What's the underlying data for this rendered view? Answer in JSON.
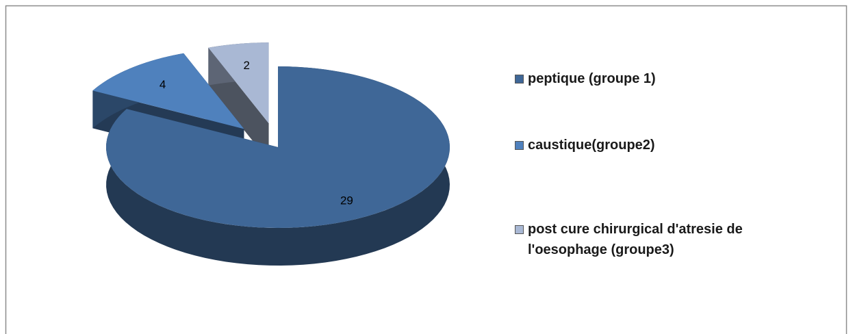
{
  "chart_data": {
    "type": "pie",
    "three_d": true,
    "exploded": [
      false,
      true,
      true
    ],
    "categories": [
      "peptique (groupe 1)",
      "caustique(groupe2)",
      "post cure chirurgical d'atresie de l'oesophage (groupe3)"
    ],
    "values": [
      29,
      4,
      2
    ],
    "colors": [
      "#3f6797",
      "#4f81bd",
      "#a9b8d4"
    ],
    "legend": "right"
  }
}
